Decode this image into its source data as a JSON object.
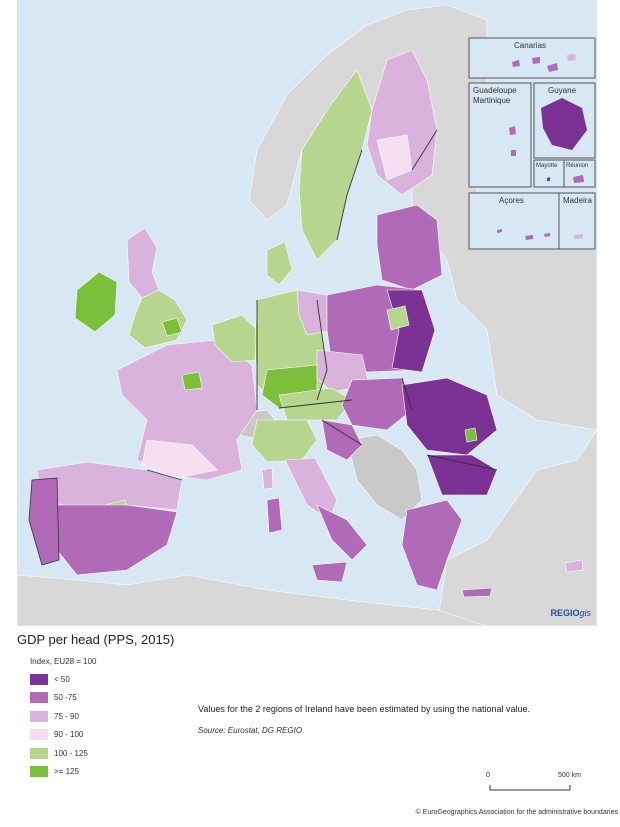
{
  "map": {
    "insets": {
      "canarias": "Canarias",
      "guadeloupe_martinique": "Guadeloupe\nMartinique",
      "guyane": "Guyane",
      "mayotte": "Mayotte",
      "reunion": "Réunion",
      "acores": "Açores",
      "madeira": "Madeira"
    },
    "logo_main": "REGIO",
    "logo_suffix": "gis"
  },
  "legend": {
    "title": "GDP per head (PPS, 2015)",
    "subtitle": "Index, EU28 = 100",
    "items": [
      {
        "label": "< 50",
        "color": "#7b3294"
      },
      {
        "label": "50 -75",
        "color": "#b06ab8"
      },
      {
        "label": "75 - 90",
        "color": "#d9b3dc"
      },
      {
        "label": "90 - 100",
        "color": "#f6def2"
      },
      {
        "label": "100 - 125",
        "color": "#b6d58e"
      },
      {
        "label": ">= 125",
        "color": "#7bbf3a"
      }
    ]
  },
  "colors": {
    "sea": "#d7e7f3",
    "non_eu_land": "#d8d8d8",
    "no_data": "#c9c9c9"
  },
  "note": "Values for the 2 regions of Ireland have been estimated by using the national value.",
  "source": "Source: Eurostat, DG REGIO",
  "scale": {
    "zero": "0",
    "distance": "500 km"
  },
  "copyright": "© EuroGeographics Association for the administrative boundaries"
}
